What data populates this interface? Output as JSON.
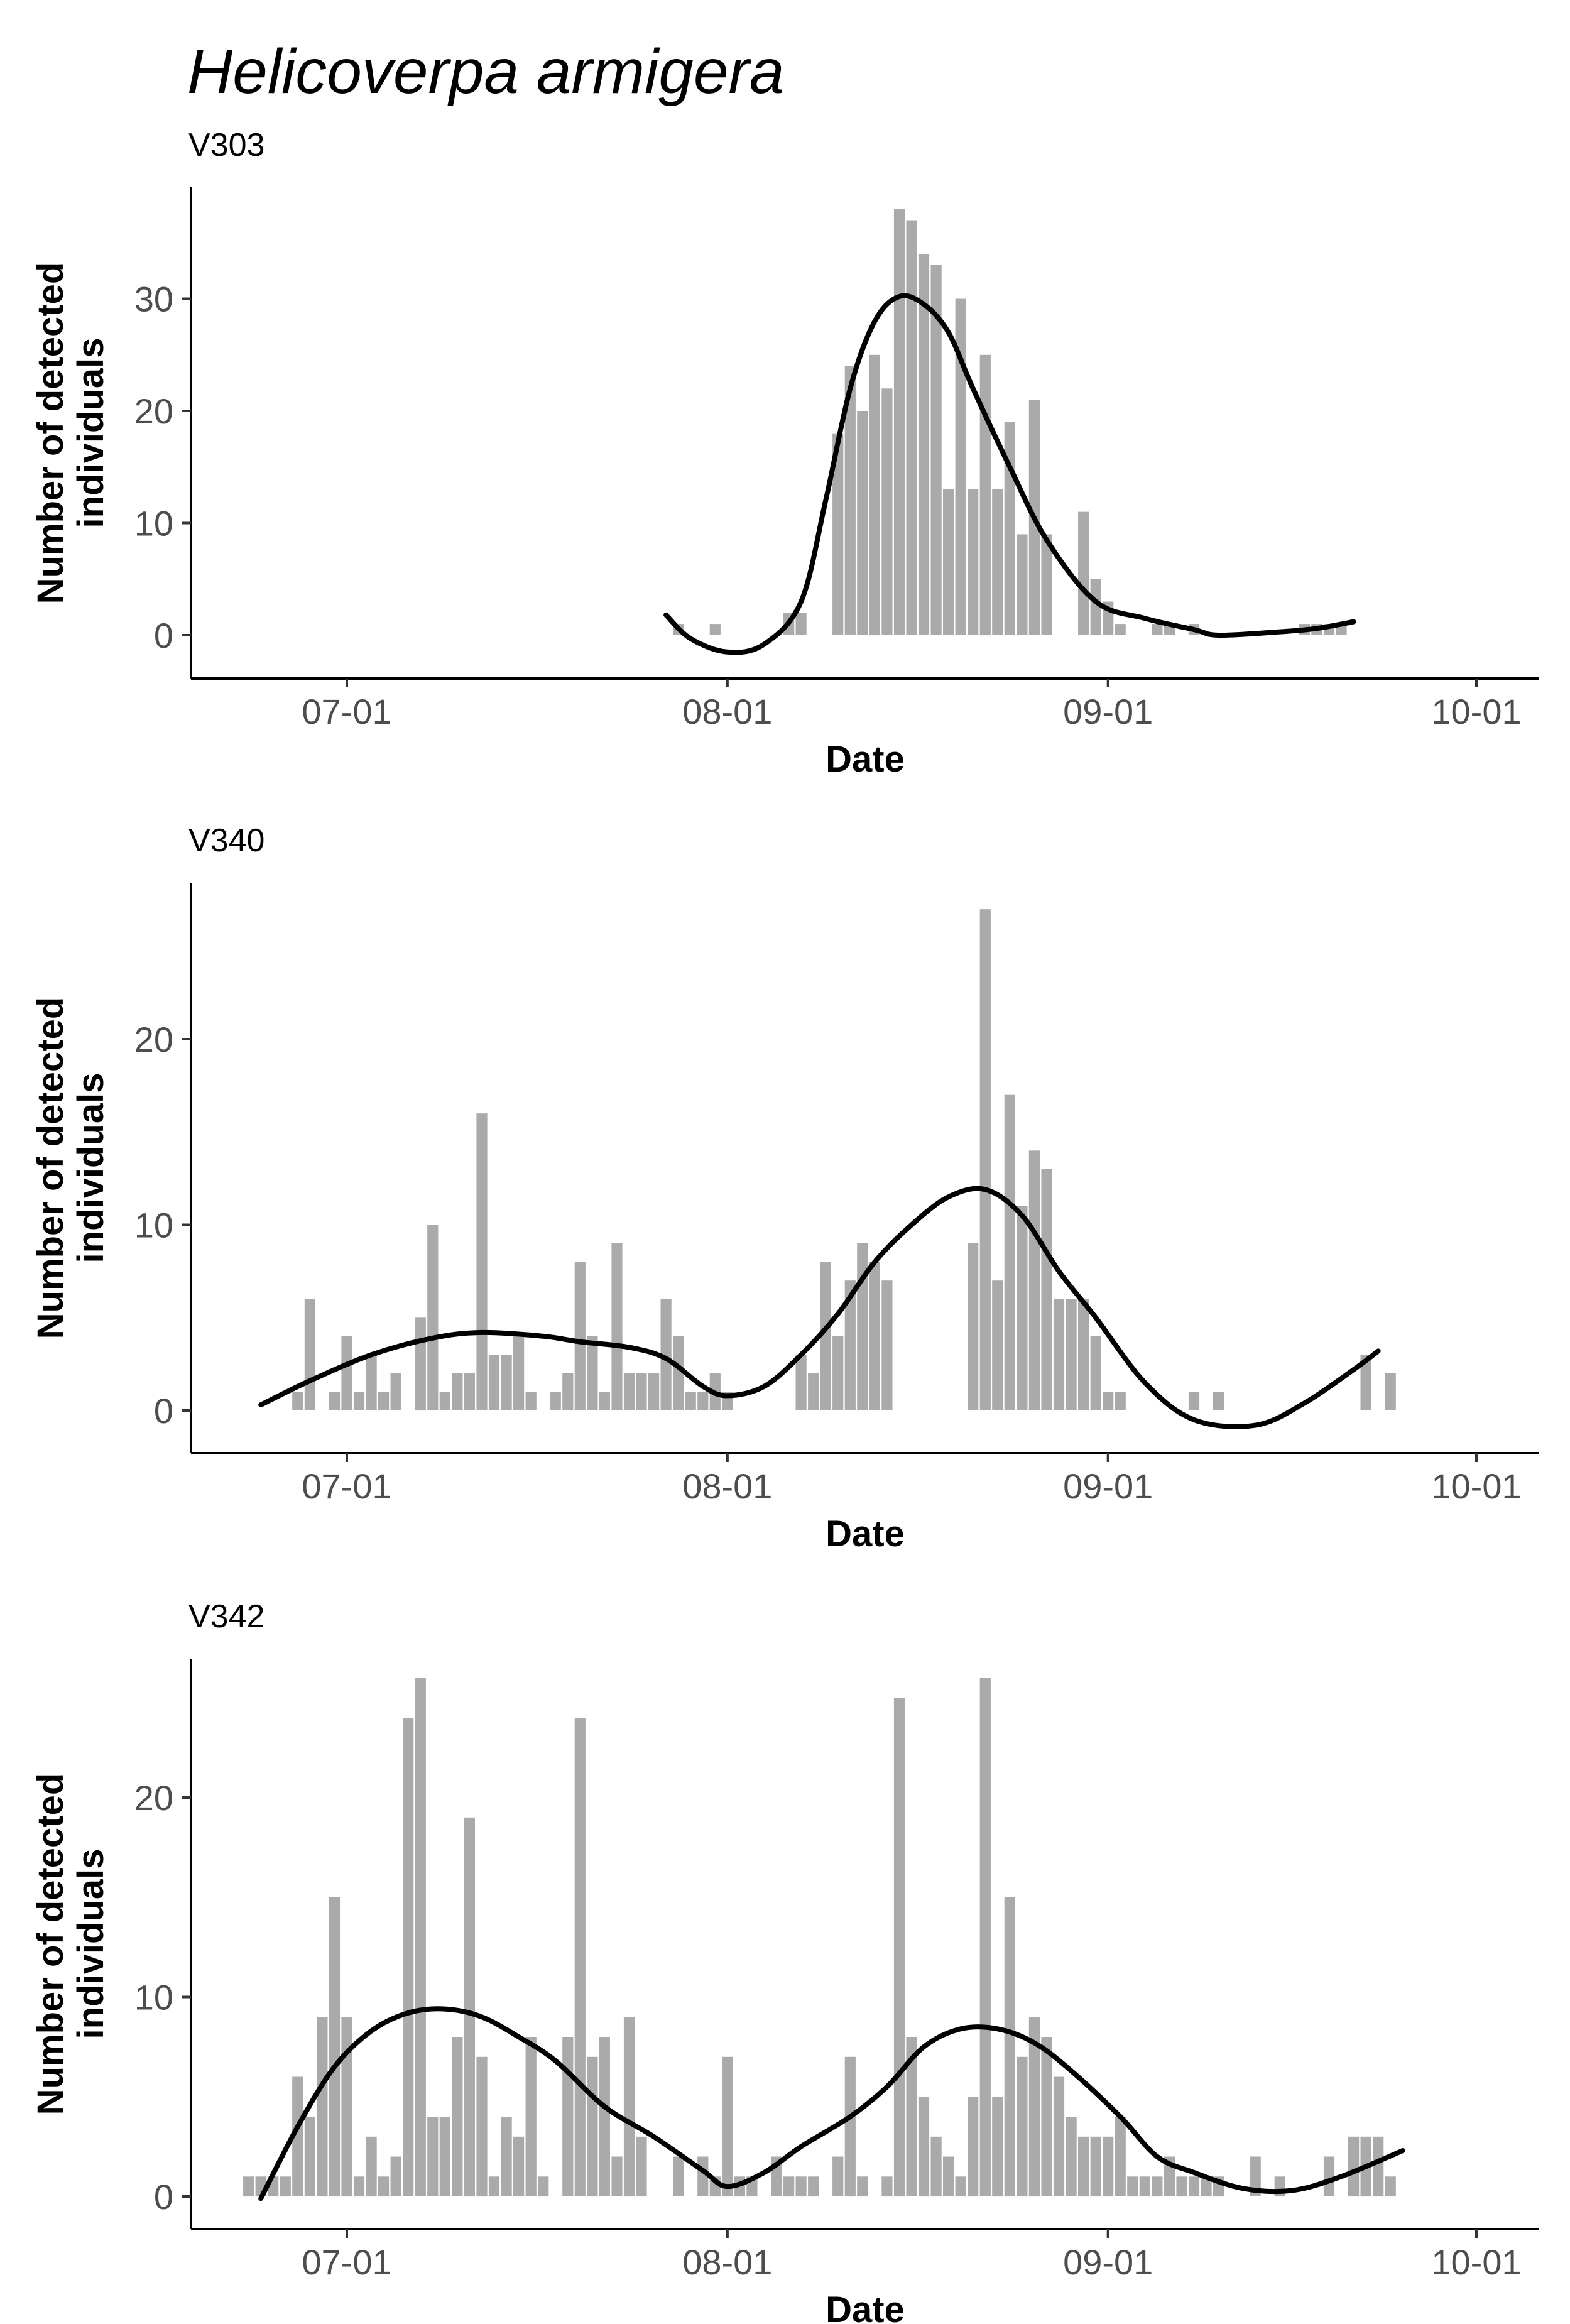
{
  "title": "Helicoverpa armigera",
  "chart_data": [
    {
      "type": "bar",
      "subtitle": "V303",
      "xlabel": "Date",
      "ylabel": "Number of detected individuals",
      "x_ticks": [
        "07-01",
        "08-01",
        "09-01",
        "10-01"
      ],
      "y_ticks": [
        0,
        10,
        20,
        30
      ],
      "bar_color": "#aaaaaa",
      "smooth_color": "#000000",
      "grid": false,
      "bars": [
        {
          "date": "07-28",
          "value": 1
        },
        {
          "date": "07-31",
          "value": 1
        },
        {
          "date": "08-06",
          "value": 2
        },
        {
          "date": "08-07",
          "value": 2
        },
        {
          "date": "08-10",
          "value": 18
        },
        {
          "date": "08-11",
          "value": 24
        },
        {
          "date": "08-12",
          "value": 20
        },
        {
          "date": "08-13",
          "value": 25
        },
        {
          "date": "08-14",
          "value": 22
        },
        {
          "date": "08-15",
          "value": 38
        },
        {
          "date": "08-16",
          "value": 37
        },
        {
          "date": "08-17",
          "value": 34
        },
        {
          "date": "08-18",
          "value": 33
        },
        {
          "date": "08-19",
          "value": 13
        },
        {
          "date": "08-20",
          "value": 30
        },
        {
          "date": "08-21",
          "value": 13
        },
        {
          "date": "08-22",
          "value": 25
        },
        {
          "date": "08-23",
          "value": 13
        },
        {
          "date": "08-24",
          "value": 19
        },
        {
          "date": "08-25",
          "value": 9
        },
        {
          "date": "08-26",
          "value": 21
        },
        {
          "date": "08-27",
          "value": 9
        },
        {
          "date": "08-30",
          "value": 11
        },
        {
          "date": "08-31",
          "value": 5
        },
        {
          "date": "09-01",
          "value": 3
        },
        {
          "date": "09-02",
          "value": 1
        },
        {
          "date": "09-05",
          "value": 1
        },
        {
          "date": "09-06",
          "value": 1
        },
        {
          "date": "09-08",
          "value": 1
        },
        {
          "date": "09-17",
          "value": 1
        },
        {
          "date": "09-18",
          "value": 1
        },
        {
          "date": "09-19",
          "value": 1
        },
        {
          "date": "09-20",
          "value": 1
        }
      ],
      "smooth": [
        {
          "date": "07-27",
          "value": 1.8
        },
        {
          "date": "07-29",
          "value": -0.3
        },
        {
          "date": "08-01",
          "value": -1.5
        },
        {
          "date": "08-04",
          "value": -0.8
        },
        {
          "date": "08-07",
          "value": 3
        },
        {
          "date": "08-09",
          "value": 12
        },
        {
          "date": "08-11",
          "value": 22
        },
        {
          "date": "08-13",
          "value": 28
        },
        {
          "date": "08-15",
          "value": 30.2
        },
        {
          "date": "08-17",
          "value": 29.5
        },
        {
          "date": "08-19",
          "value": 27
        },
        {
          "date": "08-21",
          "value": 22
        },
        {
          "date": "08-24",
          "value": 15
        },
        {
          "date": "08-27",
          "value": 8.5
        },
        {
          "date": "08-31",
          "value": 3
        },
        {
          "date": "09-04",
          "value": 1.5
        },
        {
          "date": "09-08",
          "value": 0.5
        },
        {
          "date": "09-10",
          "value": 0
        },
        {
          "date": "09-15",
          "value": 0.3
        },
        {
          "date": "09-18",
          "value": 0.6
        },
        {
          "date": "09-21",
          "value": 1.2
        }
      ]
    },
    {
      "type": "bar",
      "subtitle": "V340",
      "xlabel": "Date",
      "ylabel": "Number of detected individuals",
      "x_ticks": [
        "07-01",
        "08-01",
        "09-01",
        "10-01"
      ],
      "y_ticks": [
        0,
        10,
        20
      ],
      "bar_color": "#aaaaaa",
      "smooth_color": "#000000",
      "grid": false,
      "bars": [
        {
          "date": "06-27",
          "value": 1
        },
        {
          "date": "06-28",
          "value": 6
        },
        {
          "date": "06-30",
          "value": 1
        },
        {
          "date": "07-01",
          "value": 4
        },
        {
          "date": "07-02",
          "value": 1
        },
        {
          "date": "07-03",
          "value": 3
        },
        {
          "date": "07-04",
          "value": 1
        },
        {
          "date": "07-05",
          "value": 2
        },
        {
          "date": "07-07",
          "value": 5
        },
        {
          "date": "07-08",
          "value": 10
        },
        {
          "date": "07-09",
          "value": 1
        },
        {
          "date": "07-10",
          "value": 2
        },
        {
          "date": "07-11",
          "value": 2
        },
        {
          "date": "07-12",
          "value": 16
        },
        {
          "date": "07-13",
          "value": 3
        },
        {
          "date": "07-14",
          "value": 3
        },
        {
          "date": "07-15",
          "value": 4
        },
        {
          "date": "07-16",
          "value": 1
        },
        {
          "date": "07-18",
          "value": 1
        },
        {
          "date": "07-19",
          "value": 2
        },
        {
          "date": "07-20",
          "value": 8
        },
        {
          "date": "07-21",
          "value": 4
        },
        {
          "date": "07-22",
          "value": 1
        },
        {
          "date": "07-23",
          "value": 9
        },
        {
          "date": "07-24",
          "value": 2
        },
        {
          "date": "07-25",
          "value": 2
        },
        {
          "date": "07-26",
          "value": 2
        },
        {
          "date": "07-27",
          "value": 6
        },
        {
          "date": "07-28",
          "value": 4
        },
        {
          "date": "07-29",
          "value": 1
        },
        {
          "date": "07-30",
          "value": 1
        },
        {
          "date": "07-31",
          "value": 2
        },
        {
          "date": "08-01",
          "value": 1
        },
        {
          "date": "08-07",
          "value": 3
        },
        {
          "date": "08-08",
          "value": 2
        },
        {
          "date": "08-09",
          "value": 8
        },
        {
          "date": "08-10",
          "value": 4
        },
        {
          "date": "08-11",
          "value": 7
        },
        {
          "date": "08-12",
          "value": 9
        },
        {
          "date": "08-13",
          "value": 8
        },
        {
          "date": "08-14",
          "value": 7
        },
        {
          "date": "08-21",
          "value": 9
        },
        {
          "date": "08-22",
          "value": 27
        },
        {
          "date": "08-23",
          "value": 7
        },
        {
          "date": "08-24",
          "value": 17
        },
        {
          "date": "08-25",
          "value": 11
        },
        {
          "date": "08-26",
          "value": 14
        },
        {
          "date": "08-27",
          "value": 13
        },
        {
          "date": "08-28",
          "value": 6
        },
        {
          "date": "08-29",
          "value": 6
        },
        {
          "date": "08-30",
          "value": 6
        },
        {
          "date": "08-31",
          "value": 4
        },
        {
          "date": "09-01",
          "value": 1
        },
        {
          "date": "09-02",
          "value": 1
        },
        {
          "date": "09-08",
          "value": 1
        },
        {
          "date": "09-10",
          "value": 1
        },
        {
          "date": "09-22",
          "value": 3
        },
        {
          "date": "09-24",
          "value": 2
        }
      ],
      "smooth": [
        {
          "date": "06-24",
          "value": 0.3
        },
        {
          "date": "06-28",
          "value": 1.6
        },
        {
          "date": "07-03",
          "value": 3
        },
        {
          "date": "07-08",
          "value": 3.9
        },
        {
          "date": "07-12",
          "value": 4.2
        },
        {
          "date": "07-17",
          "value": 4
        },
        {
          "date": "07-20",
          "value": 3.7
        },
        {
          "date": "07-24",
          "value": 3.4
        },
        {
          "date": "07-27",
          "value": 2.8
        },
        {
          "date": "07-30",
          "value": 1.3
        },
        {
          "date": "08-01",
          "value": 0.8
        },
        {
          "date": "08-04",
          "value": 1.3
        },
        {
          "date": "08-07",
          "value": 3
        },
        {
          "date": "08-10",
          "value": 5.2
        },
        {
          "date": "08-13",
          "value": 8
        },
        {
          "date": "08-16",
          "value": 10
        },
        {
          "date": "08-19",
          "value": 11.5
        },
        {
          "date": "08-22",
          "value": 11.9
        },
        {
          "date": "08-25",
          "value": 10.5
        },
        {
          "date": "08-28",
          "value": 7.5
        },
        {
          "date": "08-31",
          "value": 5
        },
        {
          "date": "09-04",
          "value": 1.5
        },
        {
          "date": "09-08",
          "value": -0.5
        },
        {
          "date": "09-13",
          "value": -0.8
        },
        {
          "date": "09-17",
          "value": 0.4
        },
        {
          "date": "09-21",
          "value": 2.2
        },
        {
          "date": "09-23",
          "value": 3.2
        }
      ]
    },
    {
      "type": "bar",
      "subtitle": "V342",
      "xlabel": "Date",
      "ylabel": "Number of detected individuals",
      "x_ticks": [
        "07-01",
        "08-01",
        "09-01",
        "10-01"
      ],
      "y_ticks": [
        0,
        10,
        20
      ],
      "bar_color": "#aaaaaa",
      "smooth_color": "#000000",
      "grid": false,
      "bars": [
        {
          "date": "06-23",
          "value": 1
        },
        {
          "date": "06-24",
          "value": 1
        },
        {
          "date": "06-25",
          "value": 1
        },
        {
          "date": "06-26",
          "value": 1
        },
        {
          "date": "06-27",
          "value": 6
        },
        {
          "date": "06-28",
          "value": 4
        },
        {
          "date": "06-29",
          "value": 9
        },
        {
          "date": "06-30",
          "value": 15
        },
        {
          "date": "07-01",
          "value": 9
        },
        {
          "date": "07-02",
          "value": 1
        },
        {
          "date": "07-03",
          "value": 3
        },
        {
          "date": "07-04",
          "value": 1
        },
        {
          "date": "07-05",
          "value": 2
        },
        {
          "date": "07-06",
          "value": 24
        },
        {
          "date": "07-07",
          "value": 26
        },
        {
          "date": "07-08",
          "value": 4
        },
        {
          "date": "07-09",
          "value": 4
        },
        {
          "date": "07-10",
          "value": 8
        },
        {
          "date": "07-11",
          "value": 19
        },
        {
          "date": "07-12",
          "value": 7
        },
        {
          "date": "07-13",
          "value": 1
        },
        {
          "date": "07-14",
          "value": 4
        },
        {
          "date": "07-15",
          "value": 3
        },
        {
          "date": "07-16",
          "value": 8
        },
        {
          "date": "07-17",
          "value": 1
        },
        {
          "date": "07-19",
          "value": 8
        },
        {
          "date": "07-20",
          "value": 24
        },
        {
          "date": "07-21",
          "value": 7
        },
        {
          "date": "07-22",
          "value": 8
        },
        {
          "date": "07-23",
          "value": 2
        },
        {
          "date": "07-24",
          "value": 9
        },
        {
          "date": "07-25",
          "value": 3
        },
        {
          "date": "07-28",
          "value": 2
        },
        {
          "date": "07-30",
          "value": 2
        },
        {
          "date": "07-31",
          "value": 1
        },
        {
          "date": "08-01",
          "value": 7
        },
        {
          "date": "08-02",
          "value": 1
        },
        {
          "date": "08-03",
          "value": 1
        },
        {
          "date": "08-05",
          "value": 2
        },
        {
          "date": "08-06",
          "value": 1
        },
        {
          "date": "08-07",
          "value": 1
        },
        {
          "date": "08-08",
          "value": 1
        },
        {
          "date": "08-10",
          "value": 2
        },
        {
          "date": "08-11",
          "value": 7
        },
        {
          "date": "08-12",
          "value": 1
        },
        {
          "date": "08-14",
          "value": 1
        },
        {
          "date": "08-15",
          "value": 25
        },
        {
          "date": "08-16",
          "value": 8
        },
        {
          "date": "08-17",
          "value": 5
        },
        {
          "date": "08-18",
          "value": 3
        },
        {
          "date": "08-19",
          "value": 2
        },
        {
          "date": "08-20",
          "value": 1
        },
        {
          "date": "08-21",
          "value": 5
        },
        {
          "date": "08-22",
          "value": 26
        },
        {
          "date": "08-23",
          "value": 5
        },
        {
          "date": "08-24",
          "value": 15
        },
        {
          "date": "08-25",
          "value": 7
        },
        {
          "date": "08-26",
          "value": 9
        },
        {
          "date": "08-27",
          "value": 8
        },
        {
          "date": "08-28",
          "value": 6
        },
        {
          "date": "08-29",
          "value": 4
        },
        {
          "date": "08-30",
          "value": 3
        },
        {
          "date": "08-31",
          "value": 3
        },
        {
          "date": "09-01",
          "value": 3
        },
        {
          "date": "09-02",
          "value": 4
        },
        {
          "date": "09-03",
          "value": 1
        },
        {
          "date": "09-04",
          "value": 1
        },
        {
          "date": "09-05",
          "value": 1
        },
        {
          "date": "09-06",
          "value": 2
        },
        {
          "date": "09-07",
          "value": 1
        },
        {
          "date": "09-08",
          "value": 1
        },
        {
          "date": "09-09",
          "value": 1
        },
        {
          "date": "09-10",
          "value": 1
        },
        {
          "date": "09-13",
          "value": 2
        },
        {
          "date": "09-15",
          "value": 1
        },
        {
          "date": "09-19",
          "value": 2
        },
        {
          "date": "09-21",
          "value": 3
        },
        {
          "date": "09-22",
          "value": 3
        },
        {
          "date": "09-23",
          "value": 3
        },
        {
          "date": "09-24",
          "value": 1
        }
      ],
      "smooth": [
        {
          "date": "06-24",
          "value": -0.1
        },
        {
          "date": "06-27",
          "value": 3.5
        },
        {
          "date": "06-30",
          "value": 6.5
        },
        {
          "date": "07-03",
          "value": 8.3
        },
        {
          "date": "07-06",
          "value": 9.2
        },
        {
          "date": "07-09",
          "value": 9.4
        },
        {
          "date": "07-12",
          "value": 9
        },
        {
          "date": "07-15",
          "value": 8
        },
        {
          "date": "07-18",
          "value": 6.8
        },
        {
          "date": "07-22",
          "value": 4.5
        },
        {
          "date": "07-26",
          "value": 3
        },
        {
          "date": "07-30",
          "value": 1.3
        },
        {
          "date": "08-01",
          "value": 0.5
        },
        {
          "date": "08-04",
          "value": 1.2
        },
        {
          "date": "08-07",
          "value": 2.5
        },
        {
          "date": "08-11",
          "value": 4
        },
        {
          "date": "08-14",
          "value": 5.5
        },
        {
          "date": "08-17",
          "value": 7.5
        },
        {
          "date": "08-20",
          "value": 8.4
        },
        {
          "date": "08-23",
          "value": 8.4
        },
        {
          "date": "08-26",
          "value": 7.7
        },
        {
          "date": "08-29",
          "value": 6.3
        },
        {
          "date": "09-02",
          "value": 4
        },
        {
          "date": "09-05",
          "value": 2
        },
        {
          "date": "09-08",
          "value": 1.2
        },
        {
          "date": "09-12",
          "value": 0.4
        },
        {
          "date": "09-16",
          "value": 0.3
        },
        {
          "date": "09-20",
          "value": 1
        },
        {
          "date": "09-25",
          "value": 2.3
        }
      ]
    }
  ]
}
